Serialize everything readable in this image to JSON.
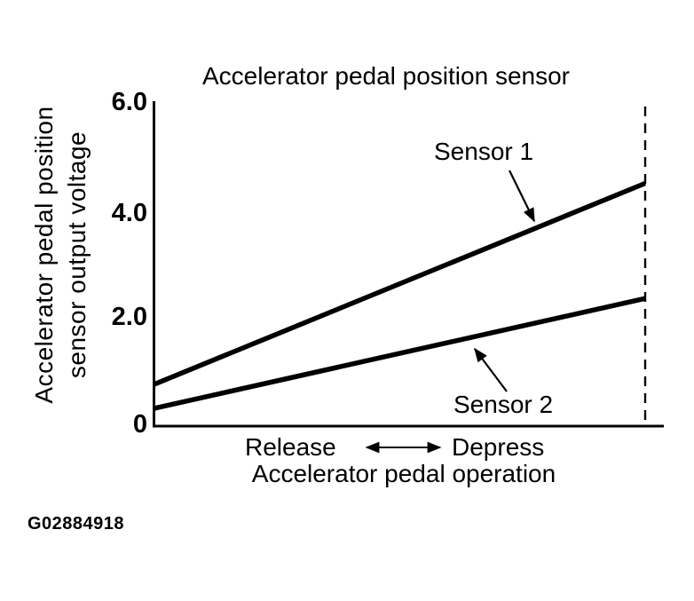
{
  "figure_id": "G02884918",
  "chart_data": {
    "type": "line",
    "title": "Accelerator pedal position sensor",
    "xlabel": "Accelerator pedal operation",
    "ylabel": "Accelerator pedal position sensor output voltage",
    "ylabel_line1": "Accelerator pedal position",
    "ylabel_line2": "sensor output voltage",
    "y_ticks": [
      "6.0",
      "4.0",
      "2.0",
      "0"
    ],
    "ylim": [
      0,
      6.0
    ],
    "x_categories": [
      "Release",
      "Depress"
    ],
    "x_axis_style": "qualitative double-headed arrow between Release and Depress",
    "series": [
      {
        "name": "Sensor 1",
        "values": [
          0.75,
          4.5
        ]
      },
      {
        "name": "Sensor 2",
        "values": [
          0.3,
          2.35
        ]
      }
    ],
    "grid": false,
    "legend": "inline labels with arrows pointing at each line",
    "end_marker": "dashed vertical line at full depress position"
  }
}
